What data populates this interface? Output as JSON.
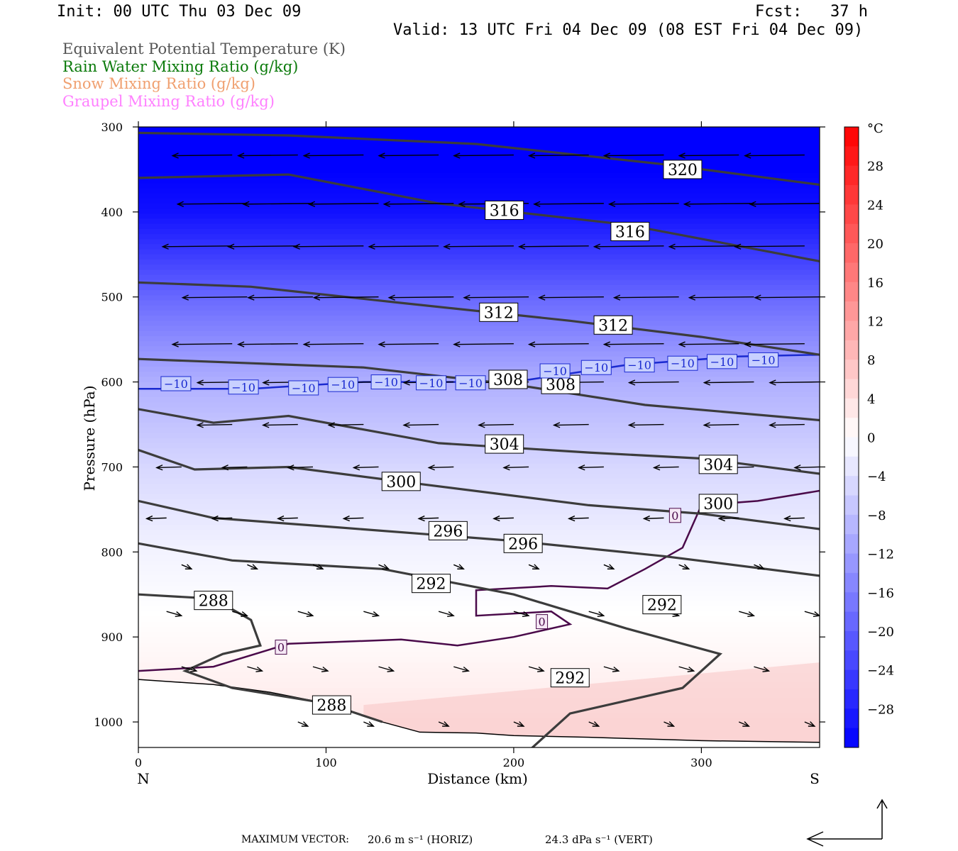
{
  "header": {
    "init": "Init: 00 UTC Thu 03 Dec 09",
    "fcst": "Fcst:   37 h",
    "valid": "Valid: 13 UTC Fri 04 Dec 09 (08 EST Fri 04 Dec 09)"
  },
  "legend": [
    {
      "text": "Equivalent Potential Temperature (K)",
      "color": "#555555"
    },
    {
      "text": "Rain Water Mixing Ratio (g/kg)",
      "color": "#0a7a0a"
    },
    {
      "text": "Snow Mixing Ratio (g/kg)",
      "color": "#f0a070"
    },
    {
      "text": "Graupel Mixing Ratio (g/kg)",
      "color": "#ff80ff"
    }
  ],
  "chart_data": {
    "type": "heatmap",
    "description_fields": [
      "temperature_shading",
      "theta_e_contours",
      "freezing_contours",
      "wind_vectors"
    ],
    "xlabel": "Distance (km)",
    "ylabel": "Pressure (hPa)",
    "xlim": [
      0,
      363
    ],
    "ylim": [
      300,
      1030
    ],
    "x_ticks": [
      0,
      100,
      200,
      300
    ],
    "y_ticks": [
      300,
      400,
      500,
      600,
      700,
      800,
      900,
      1000
    ],
    "x_end_labels": {
      "left": "N",
      "right": "S"
    },
    "colorbar": {
      "unit": "°C",
      "tick_labels": [
        "28",
        "24",
        "20",
        "16",
        "12",
        "8",
        "4",
        "0",
        "−4",
        "−8",
        "−12",
        "−16",
        "−20",
        "−24",
        "−28"
      ],
      "tick_values": [
        28,
        24,
        20,
        16,
        12,
        8,
        4,
        0,
        -4,
        -8,
        -12,
        -16,
        -20,
        -24,
        -28
      ],
      "range": [
        -32,
        32
      ]
    },
    "temperature_levels": [
      {
        "p": 300,
        "t": -34
      },
      {
        "p": 400,
        "t": -30
      },
      {
        "p": 500,
        "t": -19
      },
      {
        "p": 600,
        "t": -10
      },
      {
        "p": 700,
        "t": -5
      },
      {
        "p": 800,
        "t": -1.5
      },
      {
        "p": 900,
        "t": 0.5
      },
      {
        "p": 1000,
        "t": 3
      }
    ],
    "theta_e_contours": [
      {
        "value": 320,
        "points": [
          [
            0,
            307
          ],
          [
            80,
            310
          ],
          [
            180,
            320
          ],
          [
            280,
            344
          ],
          [
            363,
            368
          ]
        ],
        "labels": [
          [
            290,
            350
          ]
        ]
      },
      {
        "value": 316,
        "points": [
          [
            0,
            360
          ],
          [
            80,
            356
          ],
          [
            160,
            390
          ],
          [
            260,
            415
          ],
          [
            363,
            458
          ]
        ],
        "labels": [
          [
            195,
            398
          ],
          [
            262,
            423
          ]
        ]
      },
      {
        "value": 312,
        "points": [
          [
            0,
            483
          ],
          [
            60,
            488
          ],
          [
            140,
            507
          ],
          [
            230,
            528
          ],
          [
            300,
            547
          ],
          [
            363,
            568
          ]
        ],
        "labels": [
          [
            192,
            518
          ],
          [
            253,
            533
          ]
        ]
      },
      {
        "value": 308,
        "points": [
          [
            0,
            573
          ],
          [
            60,
            578
          ],
          [
            120,
            583
          ],
          [
            200,
            603
          ],
          [
            270,
            627
          ],
          [
            363,
            645
          ]
        ],
        "labels": [
          [
            197,
            597
          ],
          [
            225,
            603
          ]
        ]
      },
      {
        "value": 304,
        "points": [
          [
            0,
            632
          ],
          [
            40,
            648
          ],
          [
            80,
            640
          ],
          [
            160,
            672
          ],
          [
            240,
            683
          ],
          [
            300,
            690
          ],
          [
            363,
            708
          ]
        ],
        "labels": [
          [
            195,
            673
          ],
          [
            309,
            697
          ]
        ]
      },
      {
        "value": 300,
        "points": [
          [
            0,
            680
          ],
          [
            30,
            703
          ],
          [
            80,
            700
          ],
          [
            150,
            720
          ],
          [
            240,
            745
          ],
          [
            300,
            755
          ],
          [
            363,
            773
          ]
        ],
        "labels": [
          [
            140,
            717
          ],
          [
            309,
            743
          ]
        ]
      },
      {
        "value": 296,
        "points": [
          [
            0,
            740
          ],
          [
            40,
            760
          ],
          [
            100,
            770
          ],
          [
            200,
            787
          ],
          [
            280,
            805
          ],
          [
            363,
            828
          ]
        ],
        "labels": [
          [
            165,
            775
          ],
          [
            205,
            790
          ]
        ]
      },
      {
        "value": 292,
        "points": [
          [
            0,
            790
          ],
          [
            50,
            810
          ],
          [
            130,
            820
          ],
          [
            200,
            850
          ],
          [
            260,
            890
          ],
          [
            310,
            920
          ],
          [
            290,
            960
          ],
          [
            230,
            990
          ],
          [
            205,
            1040
          ]
        ],
        "labels": [
          [
            156,
            837
          ],
          [
            279,
            862
          ],
          [
            230,
            948
          ]
        ]
      },
      {
        "value": 288,
        "points": [
          [
            0,
            850
          ],
          [
            40,
            855
          ],
          [
            60,
            880
          ],
          [
            65,
            910
          ],
          [
            45,
            920
          ],
          [
            25,
            940
          ],
          [
            50,
            960
          ],
          [
            100,
            978
          ],
          [
            130,
            1000
          ]
        ],
        "labels": [
          [
            40,
            857
          ],
          [
            103,
            980
          ]
        ]
      }
    ],
    "freezing_contours": [
      {
        "value": 0,
        "points": [
          [
            0,
            940
          ],
          [
            40,
            935
          ],
          [
            80,
            908
          ],
          [
            140,
            903
          ],
          [
            170,
            910
          ],
          [
            200,
            900
          ],
          [
            230,
            885
          ],
          [
            220,
            870
          ],
          [
            180,
            875
          ],
          [
            180,
            845
          ],
          [
            220,
            840
          ],
          [
            250,
            843
          ],
          [
            270,
            820
          ],
          [
            290,
            795
          ],
          [
            300,
            745
          ],
          [
            330,
            740
          ],
          [
            363,
            728
          ]
        ],
        "labels": [
          [
            76,
            912
          ],
          [
            215,
            882
          ],
          [
            286,
            757
          ]
        ]
      },
      {
        "value": -10,
        "points": [
          [
            0,
            608
          ],
          [
            60,
            608
          ],
          [
            120,
            600
          ],
          [
            200,
            600
          ],
          [
            260,
            580
          ],
          [
            320,
            570
          ],
          [
            363,
            568
          ]
        ],
        "labels": [
          [
            20,
            602
          ],
          [
            56,
            606
          ],
          [
            88,
            607
          ],
          [
            109,
            603
          ],
          [
            132,
            600
          ],
          [
            156,
            601
          ],
          [
            177,
            601
          ],
          [
            222,
            587
          ],
          [
            244,
            583
          ],
          [
            267,
            580
          ],
          [
            290,
            578
          ],
          [
            311,
            576
          ],
          [
            333,
            574
          ]
        ]
      }
    ],
    "wind_vectors": {
      "max_horizontal": "20.6 m s⁻¹ (HORIZ)",
      "max_vertical": "24.3 dPa s⁻¹ (VERT)",
      "label_prefix": "MAXIMUM VECTOR:",
      "rows": [
        {
          "p": 333,
          "u": -12
        },
        {
          "p": 390,
          "u": -14
        },
        {
          "p": 440,
          "u": -14
        },
        {
          "p": 500,
          "u": -13
        },
        {
          "p": 555,
          "u": -12
        },
        {
          "p": 600,
          "u": -10
        },
        {
          "p": 650,
          "u": -7
        },
        {
          "p": 700,
          "u": -5
        },
        {
          "p": 760,
          "u": -4
        },
        {
          "p": 815,
          "u": 2
        },
        {
          "p": 870,
          "u": 3
        },
        {
          "p": 935,
          "u": 3
        },
        {
          "p": 1000,
          "u": 2
        }
      ]
    }
  },
  "axes_text": {
    "xlabel": "Distance (km)",
    "ylabel": "Pressure (hPa)",
    "north": "N",
    "south": "S",
    "unit": "°C"
  },
  "footer": {
    "prefix": "MAXIMUM VECTOR:",
    "horiz": "20.6 m s⁻¹ (HORIZ)",
    "vert": "24.3 dPa s⁻¹ (VERT)"
  }
}
